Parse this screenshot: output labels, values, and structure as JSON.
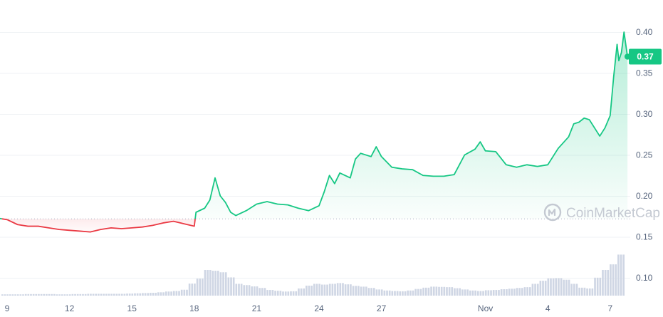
{
  "watermark": {
    "text": "CoinMarketCap",
    "icon": "coinmarketcap-logo-icon"
  },
  "price_badge": {
    "label": "0.37"
  },
  "chart_data": {
    "type": "area",
    "title": "",
    "xlabel": "",
    "ylabel": "",
    "ylim": [
      0.075,
      0.435
    ],
    "yticks": [
      {
        "value": 0.4,
        "label": "0.40"
      },
      {
        "value": 0.35,
        "label": "0.35"
      },
      {
        "value": 0.3,
        "label": "0.30"
      },
      {
        "value": 0.25,
        "label": "0.25"
      },
      {
        "value": 0.2,
        "label": "0.20"
      },
      {
        "value": 0.15,
        "label": "0.15"
      },
      {
        "value": 0.1,
        "label": "0.10"
      }
    ],
    "xlim": [
      "2022-10-08",
      "2022-11-07"
    ],
    "xticks": [
      {
        "date": "2022-10-09",
        "label": "9"
      },
      {
        "date": "2022-10-12",
        "label": "12"
      },
      {
        "date": "2022-10-15",
        "label": "15"
      },
      {
        "date": "2022-10-18",
        "label": "18"
      },
      {
        "date": "2022-10-21",
        "label": "21"
      },
      {
        "date": "2022-10-24",
        "label": "24"
      },
      {
        "date": "2022-10-27",
        "label": "27"
      },
      {
        "date": "2022-11-01",
        "label": "Nov"
      },
      {
        "date": "2022-11-04",
        "label": "4"
      },
      {
        "date": "2022-11-07",
        "label": "7"
      }
    ],
    "reference_price": 0.172,
    "grid": true,
    "series": [
      {
        "kind": "price",
        "color_up": "#16c784",
        "color_down": "#ea3943",
        "points": [
          [
            "2022-10-08T00:00",
            0.172
          ],
          [
            "2022-10-08T12:00",
            0.173
          ],
          [
            "2022-10-09T00:00",
            0.171
          ],
          [
            "2022-10-09T12:00",
            0.165
          ],
          [
            "2022-10-10T00:00",
            0.163
          ],
          [
            "2022-10-10T12:00",
            0.163
          ],
          [
            "2022-10-11T00:00",
            0.161
          ],
          [
            "2022-10-11T12:00",
            0.159
          ],
          [
            "2022-10-12T00:00",
            0.158
          ],
          [
            "2022-10-12T12:00",
            0.157
          ],
          [
            "2022-10-13T00:00",
            0.156
          ],
          [
            "2022-10-13T12:00",
            0.159
          ],
          [
            "2022-10-14T00:00",
            0.161
          ],
          [
            "2022-10-14T12:00",
            0.16
          ],
          [
            "2022-10-15T00:00",
            0.161
          ],
          [
            "2022-10-15T12:00",
            0.162
          ],
          [
            "2022-10-16T00:00",
            0.164
          ],
          [
            "2022-10-16T12:00",
            0.167
          ],
          [
            "2022-10-17T00:00",
            0.169
          ],
          [
            "2022-10-17T12:00",
            0.166
          ],
          [
            "2022-10-18T00:00",
            0.163
          ],
          [
            "2022-10-18T02:00",
            0.18
          ],
          [
            "2022-10-18T12:00",
            0.185
          ],
          [
            "2022-10-18T18:00",
            0.195
          ],
          [
            "2022-10-19T00:00",
            0.222
          ],
          [
            "2022-10-19T06:00",
            0.2
          ],
          [
            "2022-10-19T12:00",
            0.192
          ],
          [
            "2022-10-19T18:00",
            0.18
          ],
          [
            "2022-10-20T00:00",
            0.176
          ],
          [
            "2022-10-20T12:00",
            0.182
          ],
          [
            "2022-10-21T00:00",
            0.19
          ],
          [
            "2022-10-21T12:00",
            0.193
          ],
          [
            "2022-10-22T00:00",
            0.19
          ],
          [
            "2022-10-22T12:00",
            0.189
          ],
          [
            "2022-10-23T00:00",
            0.185
          ],
          [
            "2022-10-23T12:00",
            0.182
          ],
          [
            "2022-10-24T00:00",
            0.188
          ],
          [
            "2022-10-24T06:00",
            0.205
          ],
          [
            "2022-10-24T12:00",
            0.225
          ],
          [
            "2022-10-24T18:00",
            0.215
          ],
          [
            "2022-10-25T00:00",
            0.228
          ],
          [
            "2022-10-25T12:00",
            0.222
          ],
          [
            "2022-10-25T18:00",
            0.245
          ],
          [
            "2022-10-26T00:00",
            0.252
          ],
          [
            "2022-10-26T12:00",
            0.248
          ],
          [
            "2022-10-26T18:00",
            0.26
          ],
          [
            "2022-10-27T00:00",
            0.248
          ],
          [
            "2022-10-27T12:00",
            0.235
          ],
          [
            "2022-10-28T00:00",
            0.233
          ],
          [
            "2022-10-28T12:00",
            0.232
          ],
          [
            "2022-10-29T00:00",
            0.225
          ],
          [
            "2022-10-29T12:00",
            0.224
          ],
          [
            "2022-10-30T00:00",
            0.224
          ],
          [
            "2022-10-30T12:00",
            0.226
          ],
          [
            "2022-10-31T00:00",
            0.25
          ],
          [
            "2022-10-31T12:00",
            0.257
          ],
          [
            "2022-10-31T18:00",
            0.266
          ],
          [
            "2022-11-01T00:00",
            0.255
          ],
          [
            "2022-11-01T12:00",
            0.254
          ],
          [
            "2022-11-02T00:00",
            0.238
          ],
          [
            "2022-11-02T12:00",
            0.235
          ],
          [
            "2022-11-03T00:00",
            0.238
          ],
          [
            "2022-11-03T12:00",
            0.236
          ],
          [
            "2022-11-04T00:00",
            0.238
          ],
          [
            "2022-11-04T12:00",
            0.258
          ],
          [
            "2022-11-05T00:00",
            0.272
          ],
          [
            "2022-11-05T06:00",
            0.288
          ],
          [
            "2022-11-05T12:00",
            0.29
          ],
          [
            "2022-11-05T18:00",
            0.295
          ],
          [
            "2022-11-06T00:00",
            0.293
          ],
          [
            "2022-11-06T06:00",
            0.283
          ],
          [
            "2022-11-06T12:00",
            0.273
          ],
          [
            "2022-11-06T18:00",
            0.283
          ],
          [
            "2022-11-07T00:00",
            0.298
          ],
          [
            "2022-11-07T04:00",
            0.345
          ],
          [
            "2022-11-07T08:00",
            0.385
          ],
          [
            "2022-11-07T10:00",
            0.365
          ],
          [
            "2022-11-07T13:00",
            0.375
          ],
          [
            "2022-11-07T16:00",
            0.4
          ],
          [
            "2022-11-07T20:00",
            0.37
          ]
        ]
      },
      {
        "kind": "volume",
        "color": "#cfd6e4",
        "relative_values": [
          5,
          5,
          5,
          6,
          6,
          6,
          6,
          5,
          5,
          6,
          6,
          7,
          7,
          7,
          7,
          7,
          8,
          9,
          10,
          11,
          13,
          16,
          18,
          23,
          47,
          66,
          100,
          97,
          91,
          71,
          46,
          41,
          36,
          30,
          22,
          19,
          16,
          17,
          28,
          39,
          46,
          43,
          46,
          49,
          44,
          38,
          35,
          30,
          24,
          20,
          18,
          17,
          20,
          26,
          31,
          35,
          34,
          33,
          29,
          24,
          20,
          18,
          21,
          22,
          25,
          27,
          30,
          33,
          46,
          58,
          67,
          68,
          62,
          46,
          31,
          28,
          70,
          100,
          122,
          160
        ]
      }
    ]
  }
}
